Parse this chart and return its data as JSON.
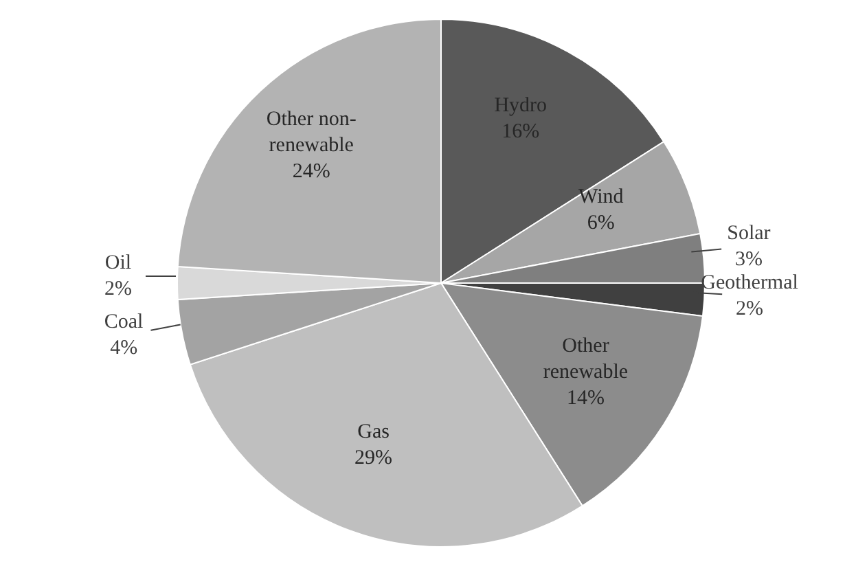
{
  "chart_data": {
    "type": "pie",
    "categories": [
      "Hydro",
      "Wind",
      "Solar",
      "Geothermal",
      "Other renewable",
      "Gas",
      "Coal",
      "Oil",
      "Other non-renewable"
    ],
    "values": [
      16,
      6,
      3,
      2,
      14,
      29,
      4,
      2,
      24
    ],
    "value_labels": [
      "16%",
      "6%",
      "3%",
      "2%",
      "14%",
      "29%",
      "4%",
      "2%",
      "24%"
    ],
    "colors": [
      "#595959",
      "#a6a6a6",
      "#7f7f7f",
      "#404040",
      "#8c8c8c",
      "#bfbfbf",
      "#a3a3a3",
      "#d9d9d9",
      "#b3b3b3"
    ],
    "legend": false
  }
}
